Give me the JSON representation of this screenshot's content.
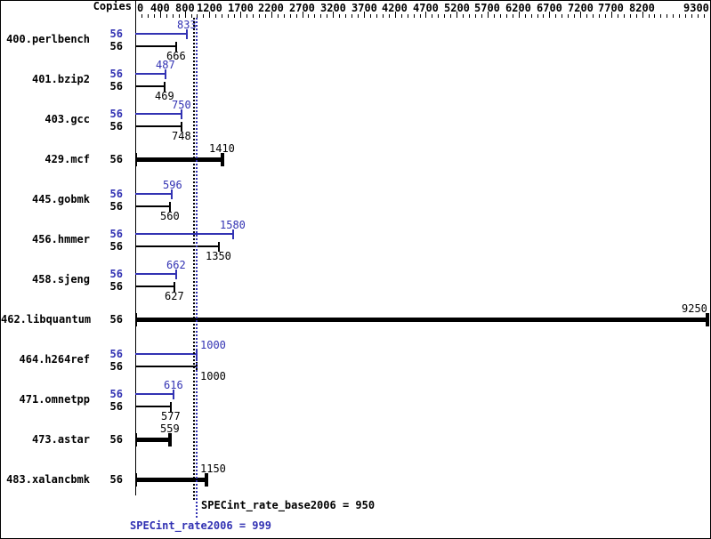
{
  "window": {
    "copies_header": "Copies"
  },
  "chart_data": {
    "type": "bar",
    "orientation": "horizontal",
    "x_axis": {
      "min": 0,
      "max": 9300,
      "minor_tick_step": 100,
      "tick_labels": [
        0,
        400,
        800,
        1200,
        1700,
        2200,
        2700,
        3200,
        3700,
        4200,
        4700,
        5200,
        5700,
        6200,
        6700,
        7200,
        7700,
        8200,
        9300
      ]
    },
    "copies_column_header": "Copies",
    "benchmarks": [
      {
        "name": "400.perlbench",
        "copies": 56,
        "peak": 833,
        "base": 666,
        "base_only": false
      },
      {
        "name": "401.bzip2",
        "copies": 56,
        "peak": 487,
        "base": 469,
        "base_only": false
      },
      {
        "name": "403.gcc",
        "copies": 56,
        "peak": 750,
        "base": 748,
        "base_only": false
      },
      {
        "name": "429.mcf",
        "copies": 56,
        "peak": null,
        "base": 1410,
        "base_only": true
      },
      {
        "name": "445.gobmk",
        "copies": 56,
        "peak": 596,
        "base": 560,
        "base_only": false
      },
      {
        "name": "456.hmmer",
        "copies": 56,
        "peak": 1580,
        "base": 1350,
        "base_only": false
      },
      {
        "name": "458.sjeng",
        "copies": 56,
        "peak": 662,
        "base": 627,
        "base_only": false
      },
      {
        "name": "462.libquantum",
        "copies": 56,
        "peak": null,
        "base": 9250,
        "base_only": true
      },
      {
        "name": "464.h264ref",
        "copies": 56,
        "peak": 1000,
        "base": 1000,
        "base_only": false
      },
      {
        "name": "471.omnetpp",
        "copies": 56,
        "peak": 616,
        "base": 577,
        "base_only": false
      },
      {
        "name": "473.astar",
        "copies": 56,
        "peak": null,
        "base": 559,
        "base_only": true
      },
      {
        "name": "483.xalancbmk",
        "copies": 56,
        "peak": null,
        "base": 1150,
        "base_only": true
      }
    ],
    "reference_lines": [
      {
        "name": "base",
        "value": 950,
        "color": "#000000"
      },
      {
        "name": "peak",
        "value": 999,
        "color": "#3232b3"
      }
    ],
    "summary": {
      "base_label": "SPECint_rate_base2006",
      "base_value": 950,
      "peak_label": "SPECint_rate2006",
      "peak_value": 999
    },
    "legend": "peak bars are blue (top), base bars are black (bottom); bold black bar means base-only row",
    "colors": {
      "peak": "#3232b3",
      "base": "#000000",
      "background": "#ffffff"
    }
  }
}
